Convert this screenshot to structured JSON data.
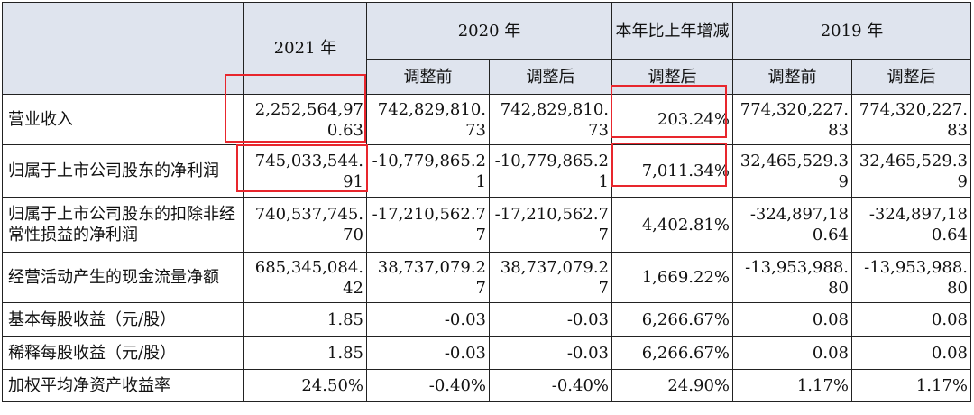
{
  "header": {
    "year_2021": "2021 年",
    "year_2020": "2020 年",
    "yoy": "本年比上年增减",
    "year_2019": "2019 年",
    "sub_2020_before": "调整前",
    "sub_2020_after": "调整后",
    "sub_yoy_after": "调整后",
    "sub_2019_before": "调整前",
    "sub_2019_after": "调整后"
  },
  "rows": [
    {
      "name": "营业收入",
      "v2021": "2,252,564,970.63",
      "v2020_before": "742,829,810.73",
      "v2020_after": "742,829,810.73",
      "yoy": "203.24%",
      "v2019_before": "774,320,227.83",
      "v2019_after": "774,320,227.83"
    },
    {
      "name": "归属于上市公司股东的净利润",
      "v2021": "745,033,544.91",
      "v2020_before": "-10,779,865.21",
      "v2020_after": "-10,779,865.21",
      "yoy": "7,011.34%",
      "v2019_before": "32,465,529.39",
      "v2019_after": "32,465,529.39"
    },
    {
      "name": "归属于上市公司股东的扣除非经常性损益的净利润",
      "v2021": "740,537,745.70",
      "v2020_before": "-17,210,562.77",
      "v2020_after": "-17,210,562.77",
      "yoy": "4,402.81%",
      "v2019_before": "-324,897,180.64",
      "v2019_after": "-324,897,180.64"
    },
    {
      "name": "经营活动产生的现金流量净额",
      "v2021": "685,345,084.42",
      "v2020_before": "38,737,079.27",
      "v2020_after": "38,737,079.27",
      "yoy": "1,669.22%",
      "v2019_before": "-13,953,988.80",
      "v2019_after": "-13,953,988.80"
    },
    {
      "name": "基本每股收益（元/股）",
      "v2021": "1.85",
      "v2020_before": "-0.03",
      "v2020_after": "-0.03",
      "yoy": "6,266.67%",
      "v2019_before": "0.08",
      "v2019_after": "0.08"
    },
    {
      "name": "稀释每股收益（元/股）",
      "v2021": "1.85",
      "v2020_before": "-0.03",
      "v2020_after": "-0.03",
      "yoy": "6,266.67%",
      "v2019_before": "0.08",
      "v2019_after": "0.08"
    },
    {
      "name": "加权平均净资产收益率",
      "v2021": "24.50%",
      "v2020_before": "-0.40%",
      "v2020_after": "-0.40%",
      "yoy": "24.90%",
      "v2019_before": "1.17%",
      "v2019_after": "1.17%"
    }
  ],
  "highlight_color": "#e8262d"
}
